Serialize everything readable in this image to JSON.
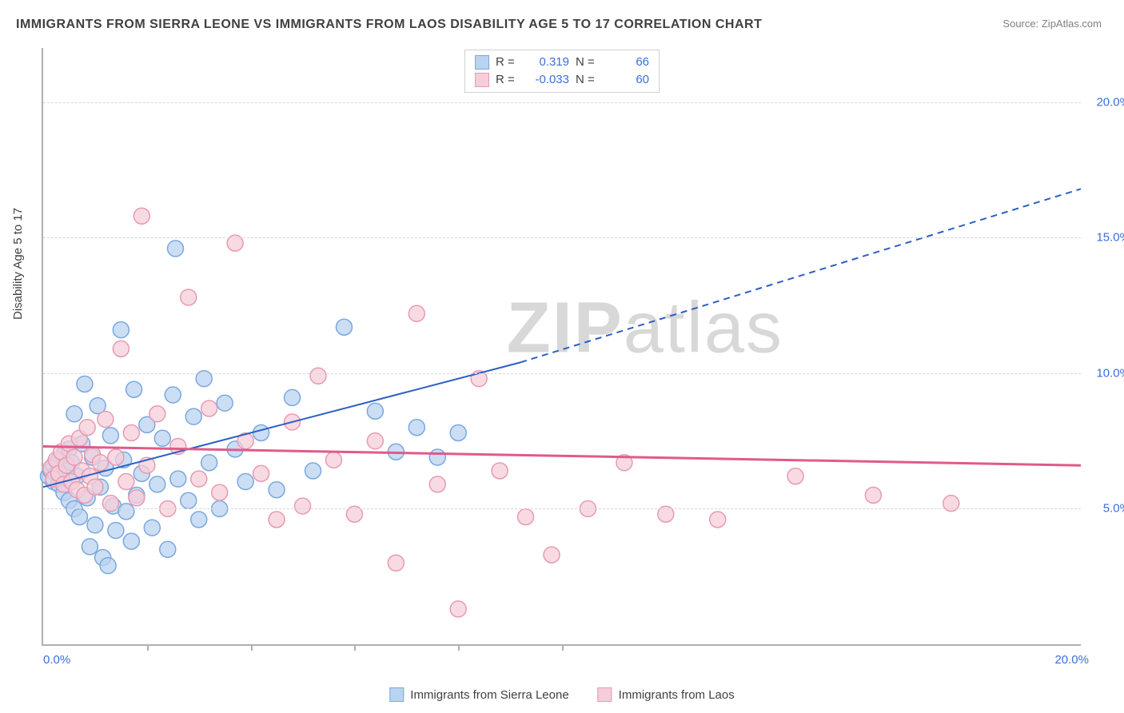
{
  "title": "IMMIGRANTS FROM SIERRA LEONE VS IMMIGRANTS FROM LAOS DISABILITY AGE 5 TO 17 CORRELATION CHART",
  "source_label": "Source:",
  "source_value": "ZipAtlas.com",
  "ylabel": "Disability Age 5 to 17",
  "watermark_bold": "ZIP",
  "watermark_light": "atlas",
  "chart": {
    "type": "scatter",
    "xlim": [
      0,
      20
    ],
    "ylim": [
      0,
      22
    ],
    "xtick_left": "0.0%",
    "xtick_right": "20.0%",
    "xtick_minor_positions": [
      2,
      4,
      6,
      8,
      10
    ],
    "yticks": [
      {
        "v": 5,
        "label": "5.0%"
      },
      {
        "v": 10,
        "label": "10.0%"
      },
      {
        "v": 15,
        "label": "15.0%"
      },
      {
        "v": 20,
        "label": "20.0%"
      }
    ],
    "grid_color": "#d8d8d8",
    "background_color": "#ffffff",
    "series": [
      {
        "name": "Immigrants from Sierra Leone",
        "color_fill": "#b9d3f0",
        "color_stroke": "#7aa8e0",
        "r_value": "0.319",
        "n_value": "66",
        "marker_r": 10,
        "trend": {
          "x1": 0,
          "y1": 5.8,
          "x2": 9.2,
          "y2": 10.4,
          "x2_dash": 20,
          "y2_dash": 16.8,
          "color": "#2b5fc4",
          "width": 2
        },
        "points": [
          [
            0.1,
            6.2
          ],
          [
            0.15,
            6.4
          ],
          [
            0.2,
            6.0
          ],
          [
            0.2,
            6.6
          ],
          [
            0.25,
            6.3
          ],
          [
            0.3,
            5.9
          ],
          [
            0.3,
            6.8
          ],
          [
            0.35,
            6.1
          ],
          [
            0.4,
            7.0
          ],
          [
            0.4,
            5.6
          ],
          [
            0.45,
            6.4
          ],
          [
            0.5,
            7.2
          ],
          [
            0.5,
            5.3
          ],
          [
            0.55,
            6.7
          ],
          [
            0.6,
            8.5
          ],
          [
            0.6,
            5.0
          ],
          [
            0.65,
            6.2
          ],
          [
            0.7,
            4.7
          ],
          [
            0.75,
            7.4
          ],
          [
            0.8,
            9.6
          ],
          [
            0.85,
            5.4
          ],
          [
            0.9,
            3.6
          ],
          [
            0.95,
            6.9
          ],
          [
            1.0,
            4.4
          ],
          [
            1.05,
            8.8
          ],
          [
            1.1,
            5.8
          ],
          [
            1.15,
            3.2
          ],
          [
            1.2,
            6.5
          ],
          [
            1.25,
            2.9
          ],
          [
            1.3,
            7.7
          ],
          [
            1.35,
            5.1
          ],
          [
            1.4,
            4.2
          ],
          [
            1.5,
            11.6
          ],
          [
            1.55,
            6.8
          ],
          [
            1.6,
            4.9
          ],
          [
            1.7,
            3.8
          ],
          [
            1.75,
            9.4
          ],
          [
            1.8,
            5.5
          ],
          [
            1.9,
            6.3
          ],
          [
            2.0,
            8.1
          ],
          [
            2.1,
            4.3
          ],
          [
            2.2,
            5.9
          ],
          [
            2.3,
            7.6
          ],
          [
            2.4,
            3.5
          ],
          [
            2.5,
            9.2
          ],
          [
            2.55,
            14.6
          ],
          [
            2.6,
            6.1
          ],
          [
            2.8,
            5.3
          ],
          [
            2.9,
            8.4
          ],
          [
            3.0,
            4.6
          ],
          [
            3.1,
            9.8
          ],
          [
            3.2,
            6.7
          ],
          [
            3.4,
            5.0
          ],
          [
            3.5,
            8.9
          ],
          [
            3.7,
            7.2
          ],
          [
            3.9,
            6.0
          ],
          [
            4.2,
            7.8
          ],
          [
            4.5,
            5.7
          ],
          [
            4.8,
            9.1
          ],
          [
            5.2,
            6.4
          ],
          [
            5.8,
            11.7
          ],
          [
            6.4,
            8.6
          ],
          [
            6.8,
            7.1
          ],
          [
            7.2,
            8.0
          ],
          [
            7.6,
            6.9
          ],
          [
            8.0,
            7.8
          ]
        ]
      },
      {
        "name": "Immigrants from Laos",
        "color_fill": "#f6cdd9",
        "color_stroke": "#e89ab2",
        "r_value": "-0.033",
        "n_value": "60",
        "marker_r": 10,
        "trend": {
          "x1": 0,
          "y1": 7.3,
          "x2": 20,
          "y2": 6.6,
          "color": "#e05a8a",
          "width": 3
        },
        "points": [
          [
            0.15,
            6.5
          ],
          [
            0.2,
            6.1
          ],
          [
            0.25,
            6.8
          ],
          [
            0.3,
            6.3
          ],
          [
            0.35,
            7.1
          ],
          [
            0.4,
            5.9
          ],
          [
            0.45,
            6.6
          ],
          [
            0.5,
            7.4
          ],
          [
            0.55,
            6.0
          ],
          [
            0.6,
            6.9
          ],
          [
            0.65,
            5.7
          ],
          [
            0.7,
            7.6
          ],
          [
            0.75,
            6.4
          ],
          [
            0.8,
            5.5
          ],
          [
            0.85,
            8.0
          ],
          [
            0.9,
            6.2
          ],
          [
            0.95,
            7.0
          ],
          [
            1.0,
            5.8
          ],
          [
            1.1,
            6.7
          ],
          [
            1.2,
            8.3
          ],
          [
            1.3,
            5.2
          ],
          [
            1.4,
            6.9
          ],
          [
            1.5,
            10.9
          ],
          [
            1.6,
            6.0
          ],
          [
            1.7,
            7.8
          ],
          [
            1.8,
            5.4
          ],
          [
            1.9,
            15.8
          ],
          [
            2.0,
            6.6
          ],
          [
            2.2,
            8.5
          ],
          [
            2.4,
            5.0
          ],
          [
            2.6,
            7.3
          ],
          [
            2.8,
            12.8
          ],
          [
            3.0,
            6.1
          ],
          [
            3.2,
            8.7
          ],
          [
            3.4,
            5.6
          ],
          [
            3.7,
            14.8
          ],
          [
            3.9,
            7.5
          ],
          [
            4.2,
            6.3
          ],
          [
            4.5,
            4.6
          ],
          [
            4.8,
            8.2
          ],
          [
            5.0,
            5.1
          ],
          [
            5.3,
            9.9
          ],
          [
            5.6,
            6.8
          ],
          [
            6.0,
            4.8
          ],
          [
            6.4,
            7.5
          ],
          [
            6.8,
            3.0
          ],
          [
            7.2,
            12.2
          ],
          [
            7.6,
            5.9
          ],
          [
            8.0,
            1.3
          ],
          [
            8.4,
            9.8
          ],
          [
            8.8,
            6.4
          ],
          [
            9.3,
            4.7
          ],
          [
            9.8,
            3.3
          ],
          [
            10.5,
            5.0
          ],
          [
            11.2,
            6.7
          ],
          [
            12.0,
            4.8
          ],
          [
            13.0,
            4.6
          ],
          [
            14.5,
            6.2
          ],
          [
            16.0,
            5.5
          ],
          [
            17.5,
            5.2
          ]
        ]
      }
    ]
  },
  "legend_top_labels": {
    "R": "R =",
    "N": "N ="
  }
}
